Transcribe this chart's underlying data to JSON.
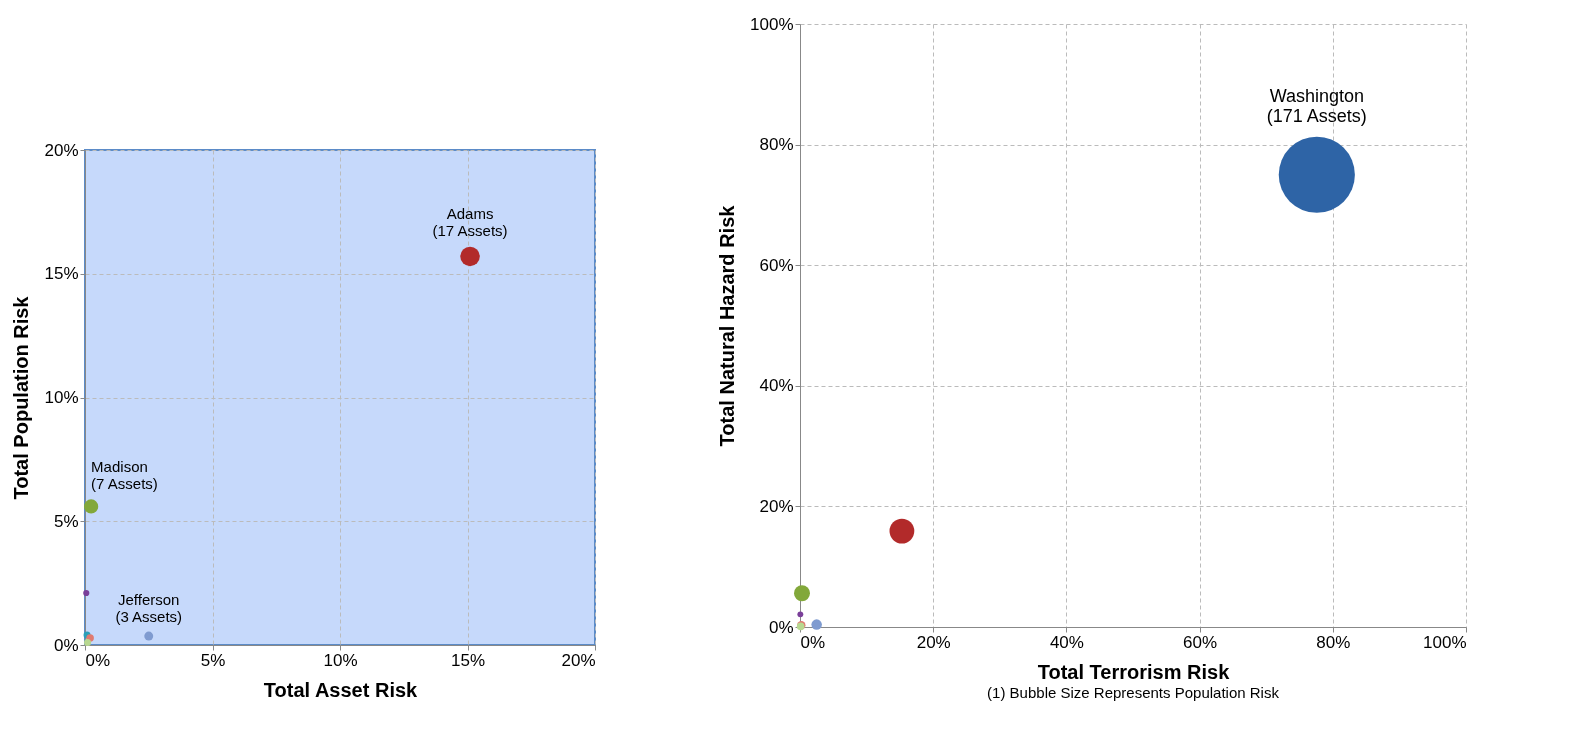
{
  "chart_data": [
    {
      "type": "bubble",
      "xlabel": "Total Asset Risk",
      "ylabel": "Total Population Risk",
      "xlim": [
        0,
        20
      ],
      "ylim": [
        0,
        20
      ],
      "xticks": [
        {
          "value": 0,
          "label": "0%"
        },
        {
          "value": 5,
          "label": "5%"
        },
        {
          "value": 10,
          "label": "10%"
        },
        {
          "value": 15,
          "label": "15%"
        },
        {
          "value": 20,
          "label": "20%"
        }
      ],
      "yticks": [
        {
          "value": 0,
          "label": "0%"
        },
        {
          "value": 5,
          "label": "5%"
        },
        {
          "value": 10,
          "label": "10%"
        },
        {
          "value": 15,
          "label": "15%"
        },
        {
          "value": 20,
          "label": "20%"
        }
      ],
      "grid": true,
      "series": [
        {
          "color": "#b22a2a",
          "x": [
            15.1
          ],
          "values": [
            15.7
          ],
          "sizes": [
            1
          ]
        },
        {
          "color": "#82a83a",
          "x": [
            0.24
          ],
          "values": [
            5.6
          ],
          "sizes": [
            0.53
          ]
        },
        {
          "color": "#7f9bd0",
          "x": [
            2.5
          ],
          "values": [
            0.36
          ],
          "sizes": [
            0.21
          ]
        },
        {
          "color": "#7a3f99",
          "x": [
            0.05
          ],
          "values": [
            2.1
          ],
          "sizes": [
            0.1
          ]
        },
        {
          "color": "#2aa0b8",
          "x": [
            0.08
          ],
          "values": [
            0.4
          ],
          "sizes": [
            0.13
          ]
        },
        {
          "color": "#e07a70",
          "x": [
            0.2
          ],
          "values": [
            0.28
          ],
          "sizes": [
            0.15
          ]
        },
        {
          "color": "#b8d890",
          "x": [
            0.1
          ],
          "values": [
            0.1
          ],
          "sizes": [
            0.13
          ]
        }
      ],
      "annotations": [
        {
          "text": "Adams\n(17 Assets)",
          "x": 15.1,
          "y": 15.7
        },
        {
          "text": "Madison\n(7 Assets)",
          "x": 0.24,
          "y": 5.6
        },
        {
          "text": "Jefferson\n(3 Assets)",
          "x": 2.5,
          "y": 0.36
        }
      ]
    },
    {
      "type": "bubble",
      "xlabel": "Total Terrorism Risk",
      "ylabel": "Total Natural Hazard Risk",
      "xlim": [
        0,
        100
      ],
      "ylim": [
        0,
        100
      ],
      "xticks": [
        {
          "value": 0,
          "label": "0%"
        },
        {
          "value": 20,
          "label": "20%"
        },
        {
          "value": 40,
          "label": "40%"
        },
        {
          "value": 60,
          "label": "60%"
        },
        {
          "value": 80,
          "label": "80%"
        },
        {
          "value": 100,
          "label": "100%"
        }
      ],
      "yticks": [
        {
          "value": 0,
          "label": "0%"
        },
        {
          "value": 20,
          "label": "20%"
        },
        {
          "value": 40,
          "label": "40%"
        },
        {
          "value": 60,
          "label": "60%"
        },
        {
          "value": 80,
          "label": "80%"
        },
        {
          "value": 100,
          "label": "100%"
        }
      ],
      "grid": true,
      "series": [
        {
          "color": "#2e64a6",
          "x": [
            77.6
          ],
          "values": [
            75
          ],
          "sizes": [
            1
          ]
        },
        {
          "color": "#b22a2a",
          "x": [
            15.3
          ],
          "values": [
            15.9
          ],
          "sizes": [
            0.106
          ]
        },
        {
          "color": "#82a83a",
          "x": [
            0.3
          ],
          "values": [
            5.6
          ],
          "sizes": [
            0.044
          ]
        },
        {
          "color": "#7f9bd0",
          "x": [
            2.5
          ],
          "values": [
            0.4
          ],
          "sizes": [
            0.019
          ]
        },
        {
          "color": "#7a3f99",
          "x": [
            0.05
          ],
          "values": [
            2.1
          ],
          "sizes": [
            0.006
          ]
        },
        {
          "color": "#e07a70",
          "x": [
            0.2
          ],
          "values": [
            0.3
          ],
          "sizes": [
            0.012
          ]
        },
        {
          "color": "#b8d890",
          "x": [
            0.1
          ],
          "values": [
            0.1
          ],
          "sizes": [
            0.01
          ]
        }
      ],
      "annotations": [
        {
          "text": "Washington\n(171 Assets)",
          "x": 77.6,
          "y": 75
        },
        "(1) Bubble Size Represents Population Risk"
      ]
    }
  ]
}
